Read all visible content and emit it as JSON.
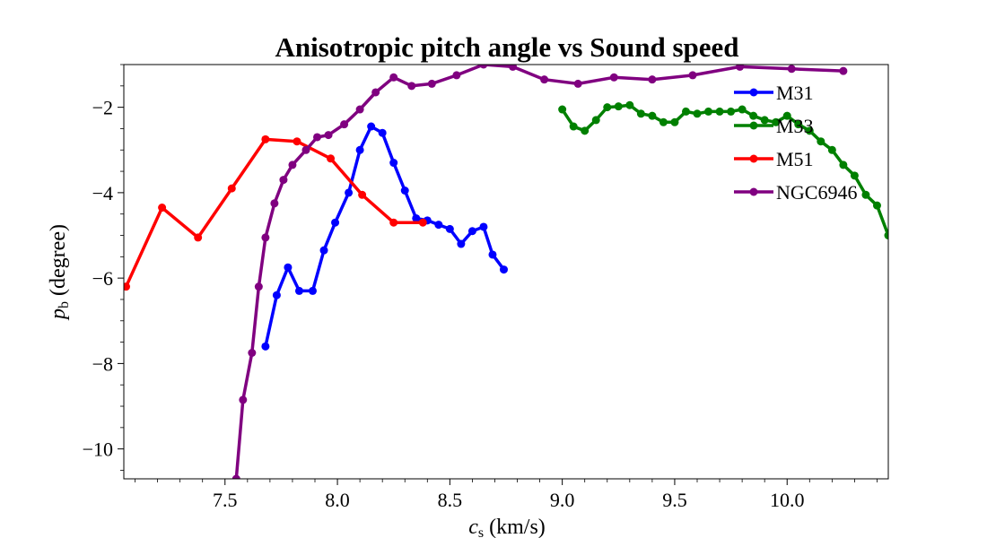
{
  "chart_data": {
    "type": "line",
    "title": "Anisotropic pitch angle vs Sound speed",
    "xlabel": {
      "main": "c",
      "sub": "s",
      "rest": " (km/s)"
    },
    "ylabel": {
      "main": "p",
      "sub": "b",
      "rest": " (degree)"
    },
    "xlim": [
      7.05,
      10.45
    ],
    "ylim": [
      -10.7,
      -1.0
    ],
    "x_ticks": [
      7.5,
      8.0,
      8.5,
      9.0,
      9.5,
      10.0
    ],
    "x_tick_labels": [
      "7.5",
      "8.0",
      "8.5",
      "9.0",
      "9.5",
      "10.0"
    ],
    "y_ticks": [
      -10,
      -8,
      -6,
      -4,
      -2
    ],
    "y_tick_labels": [
      "−10",
      "−8",
      "−6",
      "−4",
      "−2"
    ],
    "legend_position": "upper-right",
    "series": [
      {
        "name": "M31",
        "color": "#0000ff",
        "x": [
          7.68,
          7.73,
          7.78,
          7.83,
          7.89,
          7.94,
          7.99,
          8.05,
          8.1,
          8.15,
          8.2,
          8.25,
          8.3,
          8.35,
          8.4,
          8.45,
          8.5,
          8.55,
          8.6,
          8.65,
          8.69,
          8.74
        ],
        "y": [
          -7.6,
          -6.4,
          -5.75,
          -6.3,
          -6.3,
          -5.35,
          -4.7,
          -4.0,
          -3.0,
          -2.45,
          -2.6,
          -3.3,
          -3.95,
          -4.6,
          -4.65,
          -4.75,
          -4.85,
          -5.2,
          -4.9,
          -4.8,
          -5.45,
          -5.8
        ]
      },
      {
        "name": "M33",
        "color": "#008000",
        "x": [
          9.0,
          9.05,
          9.1,
          9.15,
          9.2,
          9.25,
          9.3,
          9.35,
          9.4,
          9.45,
          9.5,
          9.55,
          9.6,
          9.65,
          9.7,
          9.75,
          9.8,
          9.85,
          9.9,
          9.95,
          10.0,
          10.05,
          10.1,
          10.15,
          10.2,
          10.25,
          10.3,
          10.35,
          10.4,
          10.45
        ],
        "y": [
          -2.05,
          -2.45,
          -2.55,
          -2.3,
          -2.0,
          -1.98,
          -1.95,
          -2.15,
          -2.2,
          -2.35,
          -2.35,
          -2.1,
          -2.15,
          -2.1,
          -2.1,
          -2.1,
          -2.05,
          -2.2,
          -2.3,
          -2.35,
          -2.2,
          -2.4,
          -2.55,
          -2.8,
          -3.0,
          -3.35,
          -3.6,
          -4.05,
          -4.3,
          -5.0
        ]
      },
      {
        "name": "M51",
        "color": "#ff0000",
        "x": [
          7.06,
          7.22,
          7.38,
          7.53,
          7.68,
          7.82,
          7.97,
          8.11,
          8.25,
          8.38
        ],
        "y": [
          -6.2,
          -4.35,
          -5.05,
          -3.9,
          -2.75,
          -2.8,
          -3.2,
          -4.05,
          -4.7,
          -4.7
        ]
      },
      {
        "name": "NGC6946",
        "color": "#800080",
        "x": [
          7.55,
          7.58,
          7.62,
          7.65,
          7.68,
          7.72,
          7.76,
          7.8,
          7.86,
          7.91,
          7.96,
          8.03,
          8.1,
          8.17,
          8.25,
          8.33,
          8.42,
          8.53,
          8.65,
          8.78,
          8.92,
          9.07,
          9.23,
          9.4,
          9.58,
          9.79,
          10.02,
          10.25
        ],
        "y": [
          -10.7,
          -8.85,
          -7.75,
          -6.2,
          -5.05,
          -4.25,
          -3.7,
          -3.35,
          -3.0,
          -2.7,
          -2.65,
          -2.4,
          -2.05,
          -1.65,
          -1.3,
          -1.5,
          -1.45,
          -1.25,
          -1.0,
          -1.05,
          -1.35,
          -1.45,
          -1.3,
          -1.35,
          -1.25,
          -1.05,
          -1.1,
          -1.15
        ]
      }
    ]
  }
}
